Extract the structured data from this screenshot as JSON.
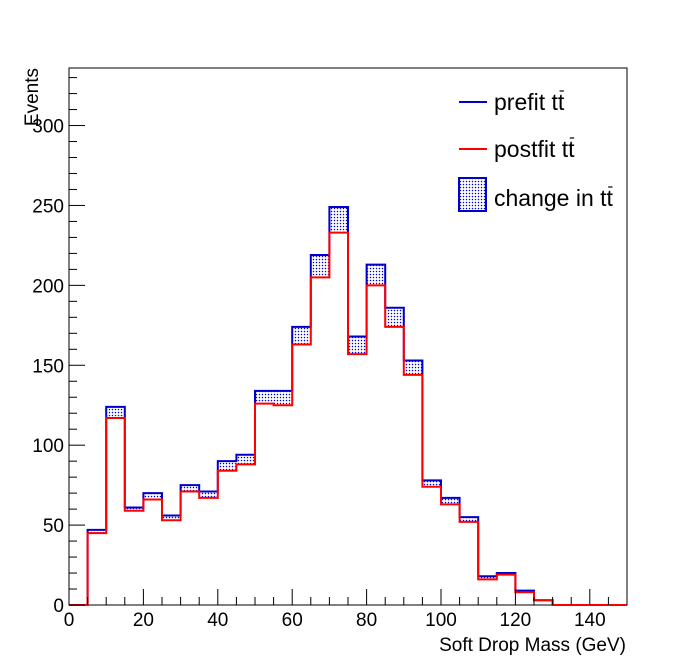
{
  "chart_data": {
    "type": "step-histogram",
    "xlabel": "Soft Drop Mass (GeV)",
    "ylabel": "Events",
    "xlim": [
      0,
      150
    ],
    "ylim": [
      0,
      336
    ],
    "x_ticks": [
      0,
      20,
      40,
      60,
      80,
      100,
      120,
      140
    ],
    "y_ticks": [
      0,
      50,
      100,
      150,
      200,
      250,
      300
    ],
    "bin_width": 5,
    "bin_edges": [
      0,
      5,
      10,
      15,
      20,
      25,
      30,
      35,
      40,
      45,
      50,
      55,
      60,
      65,
      70,
      75,
      80,
      85,
      90,
      95,
      100,
      105,
      110,
      115,
      120,
      125,
      130,
      135,
      140,
      145,
      150
    ],
    "legend_position": "top-right",
    "series": [
      {
        "name": "prefit t̅t",
        "label_base": "prefit t",
        "color": "#0000cc",
        "values": [
          0,
          47,
          124,
          61,
          70,
          56,
          75,
          71,
          90,
          94,
          134,
          134,
          174,
          219,
          249,
          168,
          213,
          186,
          153,
          78,
          67,
          55,
          18,
          20,
          9,
          3,
          0,
          0,
          0,
          0
        ]
      },
      {
        "name": "postfit t̅t",
        "label_base": "postfit t",
        "color": "#ff0000",
        "values": [
          0,
          45,
          117,
          59,
          66,
          53,
          71,
          67,
          84,
          88,
          126,
          125,
          163,
          205,
          233,
          157,
          200,
          174,
          144,
          74,
          63,
          52,
          16,
          19,
          8,
          3,
          0,
          0,
          0,
          0
        ]
      }
    ],
    "band": {
      "name": "change in t̅t",
      "label_base": "change in t",
      "color": "#0000cc",
      "fill": "dotted"
    }
  }
}
